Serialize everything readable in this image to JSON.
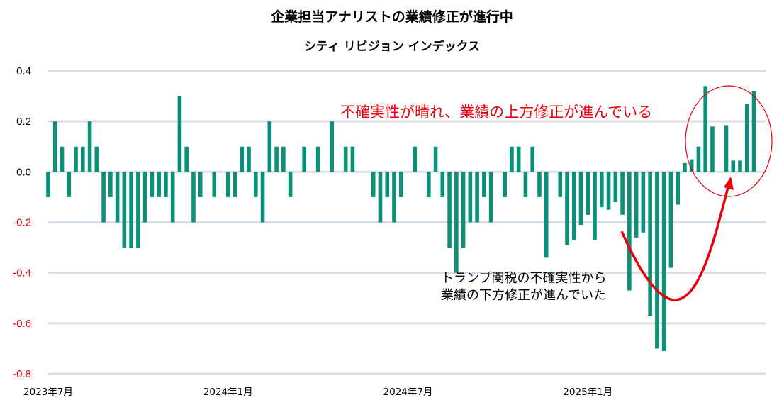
{
  "chart_data": {
    "type": "bar",
    "title": "企業担当アナリストの業績修正が進行中",
    "subtitle": "シティ リビジョン インデックス",
    "xlabel": "",
    "ylabel": "",
    "ylim": [
      -0.8,
      0.4
    ],
    "yticks": [
      "0.4",
      "0.2",
      "0.0",
      "-0.2",
      "-0.4",
      "-0.6",
      "-0.8"
    ],
    "ytick_values": [
      0.4,
      0.2,
      0.0,
      -0.2,
      -0.4,
      -0.6,
      -0.8
    ],
    "xticks": [
      {
        "label": "2023年7月",
        "index": 0
      },
      {
        "label": "2024年1月",
        "index": 26
      },
      {
        "label": "2024年7月",
        "index": 52
      },
      {
        "label": "2025年1月",
        "index": 78
      }
    ],
    "grid": true,
    "bar_color": "#0a9178",
    "negative_tick_color": "#e8000b",
    "positive_tick_color": "#000000",
    "values": [
      -0.1,
      0.2,
      0.1,
      -0.1,
      0.1,
      0.1,
      0.2,
      0.1,
      -0.2,
      -0.1,
      -0.2,
      -0.3,
      -0.3,
      -0.3,
      -0.2,
      -0.1,
      -0.1,
      -0.1,
      -0.2,
      0.3,
      0.1,
      -0.2,
      -0.1,
      0,
      -0.1,
      0,
      -0.1,
      -0.1,
      0.1,
      0.1,
      -0.1,
      -0.2,
      0.2,
      0.1,
      0.1,
      -0.1,
      0,
      0.1,
      0,
      0.1,
      0,
      0.2,
      0,
      0.1,
      0.1,
      0,
      0,
      -0.1,
      -0.2,
      -0.1,
      -0.2,
      -0.1,
      0,
      0.1,
      0,
      -0.1,
      0.1,
      -0.1,
      -0.3,
      -0.4,
      -0.3,
      -0.2,
      -0.2,
      -0.1,
      -0.2,
      0,
      -0.1,
      0.1,
      0.1,
      -0.1,
      0.1,
      -0.1,
      -0.34,
      0,
      -0.1,
      -0.29,
      -0.27,
      -0.21,
      -0.17,
      -0.27,
      -0.14,
      -0.15,
      -0.12,
      -0.17,
      -0.47,
      -0.26,
      -0.24,
      -0.57,
      -0.7,
      -0.71,
      -0.38,
      -0.13,
      0.035,
      0.05,
      0.1,
      0.34,
      0.18,
      0,
      0.185,
      0.045,
      0.045,
      0.27,
      0.32
    ],
    "annotations": [
      {
        "text": "不確実性が晴れ、業績の上方修正が進んでいる",
        "color": "#e8000b"
      },
      {
        "lines": [
          "トランプ関税の不確実性から",
          "業績の下方修正が進んでいた"
        ],
        "color": "#000000"
      }
    ],
    "highlight_color": "#e8000b"
  }
}
